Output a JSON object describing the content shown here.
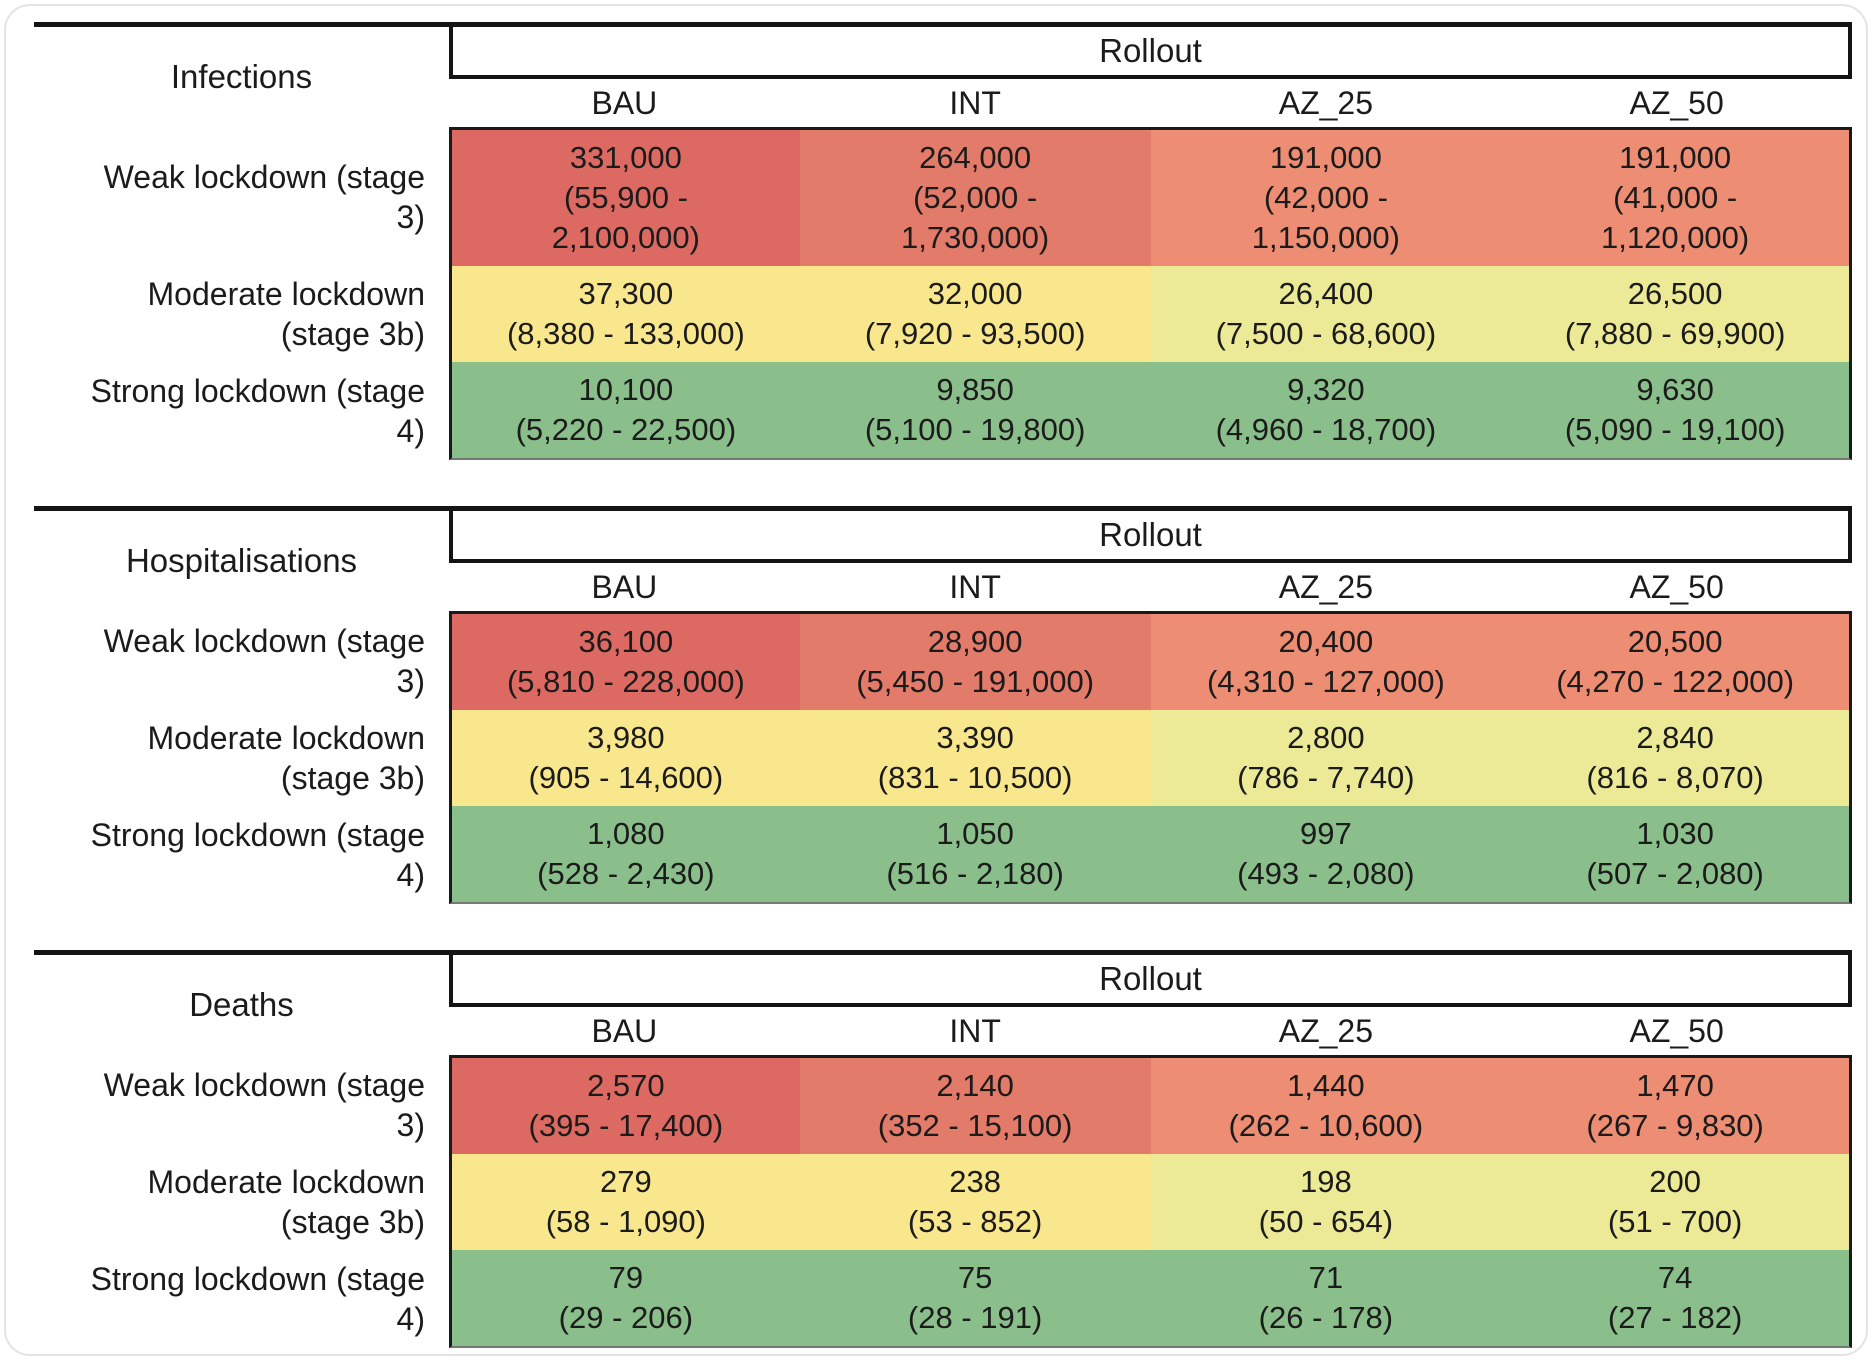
{
  "figure": {
    "tables": [
      {
        "title": "Infections",
        "group_header": "Rollout",
        "columns": [
          "BAU",
          "INT",
          "AZ_25",
          "AZ_50"
        ],
        "rows": [
          {
            "label": "Weak lockdown (stage\n3)",
            "cells": [
              {
                "text": "331,000\n(55,900 -\n2,100,000)",
                "color": "#dc6a63"
              },
              {
                "text": "264,000\n(52,000 -\n1,730,000)",
                "color": "#e37b6b"
              },
              {
                "text": "191,000\n(42,000 -\n1,150,000)",
                "color": "#ec8d74"
              },
              {
                "text": "191,000\n(41,000 -\n1,120,000)",
                "color": "#ec8d74"
              }
            ]
          },
          {
            "label": "Moderate lockdown\n(stage 3b)",
            "cells": [
              {
                "text": "37,300\n(8,380 - 133,000)",
                "color": "#f9e78e"
              },
              {
                "text": "32,000\n(7,920 - 93,500)",
                "color": "#f9e78e"
              },
              {
                "text": "26,400\n(7,500 - 68,600)",
                "color": "#ecea96"
              },
              {
                "text": "26,500\n(7,880 - 69,900)",
                "color": "#ecea96"
              }
            ]
          },
          {
            "label": "Strong lockdown (stage\n4)",
            "cells": [
              {
                "text": "10,100\n(5,220 - 22,500)",
                "color": "#8abe8b"
              },
              {
                "text": "9,850\n(5,100 - 19,800)",
                "color": "#8abe8b"
              },
              {
                "text": "9,320\n(4,960 - 18,700)",
                "color": "#8abe8b"
              },
              {
                "text": "9,630\n(5,090 - 19,100)",
                "color": "#8abe8b"
              }
            ]
          }
        ]
      },
      {
        "title": "Hospitalisations",
        "group_header": "Rollout",
        "columns": [
          "BAU",
          "INT",
          "AZ_25",
          "AZ_50"
        ],
        "rows": [
          {
            "label": "Weak lockdown (stage\n3)",
            "cells": [
              {
                "text": "36,100\n(5,810 - 228,000)",
                "color": "#dc6a63"
              },
              {
                "text": "28,900\n(5,450 - 191,000)",
                "color": "#e37b6b"
              },
              {
                "text": "20,400\n(4,310 - 127,000)",
                "color": "#ec8d74"
              },
              {
                "text": "20,500\n(4,270 - 122,000)",
                "color": "#ec8d74"
              }
            ]
          },
          {
            "label": "Moderate lockdown\n(stage 3b)",
            "cells": [
              {
                "text": "3,980\n(905 - 14,600)",
                "color": "#f9e78e"
              },
              {
                "text": "3,390\n(831 - 10,500)",
                "color": "#f9e78e"
              },
              {
                "text": "2,800\n(786 - 7,740)",
                "color": "#ecea96"
              },
              {
                "text": "2,840\n(816 - 8,070)",
                "color": "#ecea96"
              }
            ]
          },
          {
            "label": "Strong lockdown (stage\n4)",
            "cells": [
              {
                "text": "1,080\n(528 - 2,430)",
                "color": "#8abe8b"
              },
              {
                "text": "1,050\n(516 - 2,180)",
                "color": "#8abe8b"
              },
              {
                "text": "997\n(493 - 2,080)",
                "color": "#8abe8b"
              },
              {
                "text": "1,030\n(507 - 2,080)",
                "color": "#8abe8b"
              }
            ]
          }
        ]
      },
      {
        "title": "Deaths",
        "group_header": "Rollout",
        "columns": [
          "BAU",
          "INT",
          "AZ_25",
          "AZ_50"
        ],
        "rows": [
          {
            "label": "Weak lockdown (stage\n3)",
            "cells": [
              {
                "text": "2,570\n(395 - 17,400)",
                "color": "#dc6a63"
              },
              {
                "text": "2,140\n(352 - 15,100)",
                "color": "#e37b6b"
              },
              {
                "text": "1,440\n(262 - 10,600)",
                "color": "#ec8d74"
              },
              {
                "text": "1,470\n(267 - 9,830)",
                "color": "#ec8d74"
              }
            ]
          },
          {
            "label": "Moderate lockdown\n(stage 3b)",
            "cells": [
              {
                "text": "279\n(58 - 1,090)",
                "color": "#f9e78e"
              },
              {
                "text": "238\n(53 - 852)",
                "color": "#f9e78e"
              },
              {
                "text": "198\n(50 - 654)",
                "color": "#ecea96"
              },
              {
                "text": "200\n(51 - 700)",
                "color": "#ecea96"
              }
            ]
          },
          {
            "label": "Strong lockdown (stage\n4)",
            "cells": [
              {
                "text": "79\n(29 - 206)",
                "color": "#8abe8b"
              },
              {
                "text": "75\n(28 - 191)",
                "color": "#8abe8b"
              },
              {
                "text": "71\n(26 - 178)",
                "color": "#8abe8b"
              },
              {
                "text": "74\n(27 - 182)",
                "color": "#8abe8b"
              }
            ]
          }
        ]
      }
    ]
  },
  "chart_data": [
    {
      "type": "table",
      "title": "Infections",
      "group_header": "Rollout",
      "columns": [
        "BAU",
        "INT",
        "AZ_25",
        "AZ_50"
      ],
      "row_labels": [
        "Weak lockdown (stage 3)",
        "Moderate lockdown (stage 3b)",
        "Strong lockdown (stage 4)"
      ],
      "medians": [
        [
          331000,
          264000,
          191000,
          191000
        ],
        [
          37300,
          32000,
          26400,
          26500
        ],
        [
          10100,
          9850,
          9320,
          9630
        ]
      ],
      "ranges": [
        [
          [
            55900,
            2100000
          ],
          [
            52000,
            1730000
          ],
          [
            42000,
            1150000
          ],
          [
            41000,
            1120000
          ]
        ],
        [
          [
            8380,
            133000
          ],
          [
            7920,
            93500
          ],
          [
            7500,
            68600
          ],
          [
            7880,
            69900
          ]
        ],
        [
          [
            5220,
            22500
          ],
          [
            5100,
            19800
          ],
          [
            4960,
            18700
          ],
          [
            5090,
            19100
          ]
        ]
      ],
      "color_scale": "red-yellow-green heatmap, high=red low=green"
    },
    {
      "type": "table",
      "title": "Hospitalisations",
      "group_header": "Rollout",
      "columns": [
        "BAU",
        "INT",
        "AZ_25",
        "AZ_50"
      ],
      "row_labels": [
        "Weak lockdown (stage 3)",
        "Moderate lockdown (stage 3b)",
        "Strong lockdown (stage 4)"
      ],
      "medians": [
        [
          36100,
          28900,
          20400,
          20500
        ],
        [
          3980,
          3390,
          2800,
          2840
        ],
        [
          1080,
          1050,
          997,
          1030
        ]
      ],
      "ranges": [
        [
          [
            5810,
            228000
          ],
          [
            5450,
            191000
          ],
          [
            4310,
            127000
          ],
          [
            4270,
            122000
          ]
        ],
        [
          [
            905,
            14600
          ],
          [
            831,
            10500
          ],
          [
            786,
            7740
          ],
          [
            816,
            8070
          ]
        ],
        [
          [
            528,
            2430
          ],
          [
            516,
            2180
          ],
          [
            493,
            2080
          ],
          [
            507,
            2080
          ]
        ]
      ],
      "color_scale": "red-yellow-green heatmap, high=red low=green"
    },
    {
      "type": "table",
      "title": "Deaths",
      "group_header": "Rollout",
      "columns": [
        "BAU",
        "INT",
        "AZ_25",
        "AZ_50"
      ],
      "row_labels": [
        "Weak lockdown (stage 3)",
        "Moderate lockdown (stage 3b)",
        "Strong lockdown (stage 4)"
      ],
      "medians": [
        [
          2570,
          2140,
          1440,
          1470
        ],
        [
          279,
          238,
          198,
          200
        ],
        [
          79,
          75,
          71,
          74
        ]
      ],
      "ranges": [
        [
          [
            395,
            17400
          ],
          [
            352,
            15100
          ],
          [
            262,
            10600
          ],
          [
            267,
            9830
          ]
        ],
        [
          [
            58,
            1090
          ],
          [
            53,
            852
          ],
          [
            50,
            654
          ],
          [
            51,
            700
          ]
        ],
        [
          [
            29,
            206
          ],
          [
            28,
            191
          ],
          [
            26,
            178
          ],
          [
            27,
            182
          ]
        ]
      ],
      "color_scale": "red-yellow-green heatmap, high=red low=green"
    }
  ]
}
